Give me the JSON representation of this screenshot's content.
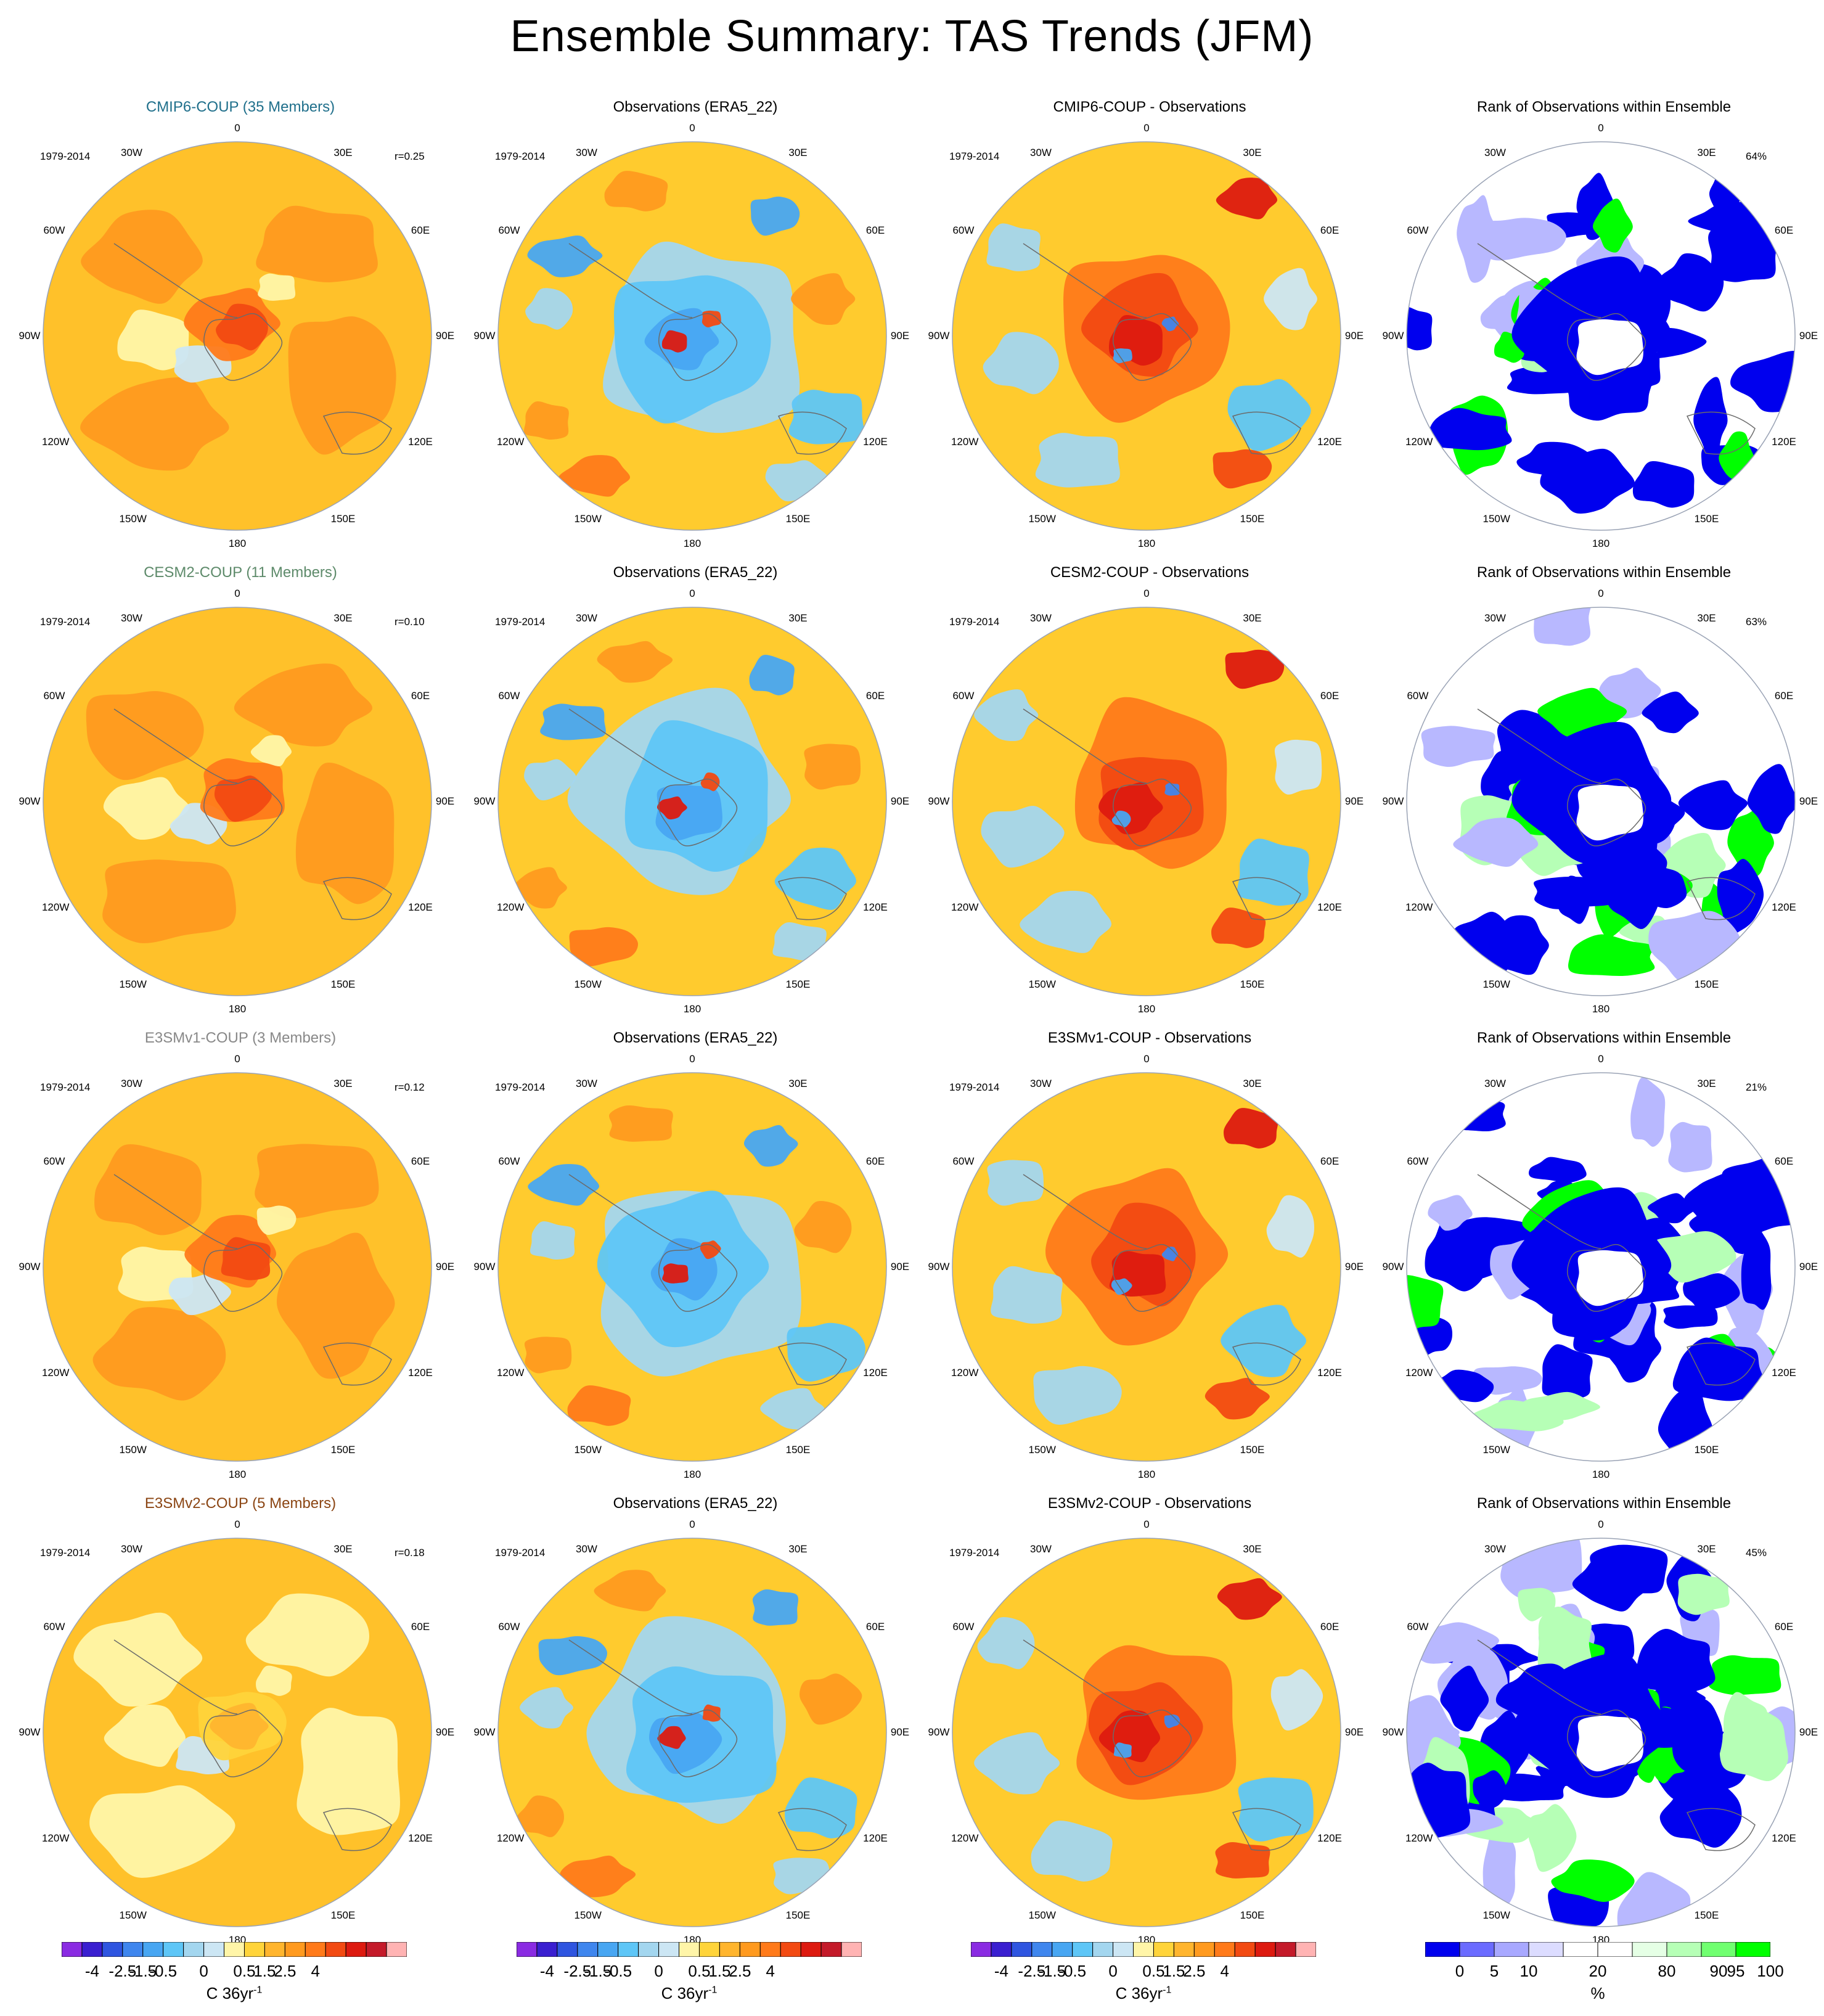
{
  "title": "Ensemble Summary: TAS Trends (JFM)",
  "period": "1979-2014",
  "rows": [
    {
      "model_title": "CMIP6-COUP (35 Members)",
      "model_color": "#1f6f8b",
      "r_label": "r=0.25",
      "obs_title": "Observations (ERA5_22)",
      "diff_title": "CMIP6-COUP - Observations",
      "rank_title": "Rank of Observations within Ensemble",
      "rank_pct": "64%"
    },
    {
      "model_title": "CESM2-COUP (11 Members)",
      "model_color": "#5d8a6a",
      "r_label": "r=0.10",
      "obs_title": "Observations (ERA5_22)",
      "diff_title": "CESM2-COUP - Observations",
      "rank_title": "Rank of Observations within Ensemble",
      "rank_pct": "63%"
    },
    {
      "model_title": "E3SMv1-COUP (3 Members)",
      "model_color": "#888888",
      "r_label": "r=0.12",
      "obs_title": "Observations (ERA5_22)",
      "diff_title": "E3SMv1-COUP - Observations",
      "rank_title": "Rank of Observations within Ensemble",
      "rank_pct": "21%"
    },
    {
      "model_title": "E3SMv2-COUP (5 Members)",
      "model_color": "#8b4513",
      "r_label": "r=0.18",
      "obs_title": "Observations (ERA5_22)",
      "diff_title": "E3SMv2-COUP - Observations",
      "rank_title": "Rank of Observations within Ensemble",
      "rank_pct": "45%"
    }
  ],
  "longitude_labels": [
    "0",
    "30E",
    "60E",
    "90E",
    "120E",
    "150E",
    "180",
    "150W",
    "120W",
    "90W",
    "60W",
    "30W"
  ],
  "colorbar_trend": {
    "colors": [
      "#8a2be2",
      "#3a1fd0",
      "#2f55e0",
      "#3f86ee",
      "#48a6f2",
      "#5ec6f7",
      "#a3d6ef",
      "#cce6f4",
      "#fff5a8",
      "#ffd43a",
      "#ffb52e",
      "#ff9a1f",
      "#ff7a1a",
      "#f24a12",
      "#dd1a10",
      "#c41a2a",
      "#ffb3b3"
    ],
    "labels": [
      "-4",
      "-2.5",
      "-1.5",
      "-0.5",
      "0",
      "0.5",
      "1.5",
      "2.5",
      "4"
    ],
    "unit": "C 36yr",
    "unit_sup": "-1"
  },
  "colorbar_rank": {
    "colors": [
      "#0000ee",
      "#6b6bff",
      "#a8a8ff",
      "#dcdcff",
      "#ffffff",
      "#ffffff",
      "#e5ffe5",
      "#b6ffb6",
      "#70ff70",
      "#00ff00"
    ],
    "labels": [
      "0",
      "5",
      "10",
      "20",
      "80",
      "90",
      "95",
      "100"
    ],
    "unit": "%"
  },
  "palette": {
    "model_base": "#ffc12a",
    "obs_base": "#ffcb2e",
    "rank_low": "#0000ee",
    "rank_high": "#00ff00",
    "land_outline": "#6b6b6b"
  }
}
